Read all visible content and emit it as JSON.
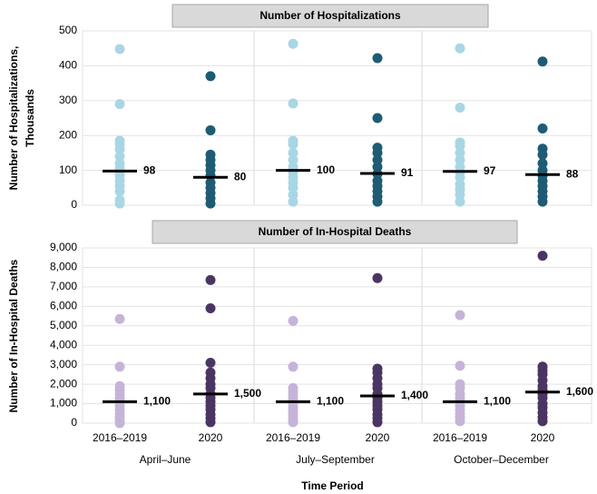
{
  "chart_data": [
    {
      "type": "strip",
      "title": "Number of Hospitalizations",
      "ylabel": [
        "Number of Hospitalizations,",
        "Thousands"
      ],
      "ylim": [
        0,
        500
      ],
      "yticks": [
        0,
        100,
        200,
        300,
        400,
        500
      ],
      "grid": true,
      "series": [
        {
          "color": "#a9d6e5",
          "values": [
            448,
            290,
            185,
            175,
            160,
            140,
            120,
            105,
            95,
            85,
            70,
            55,
            40,
            15,
            5
          ]
        },
        {
          "color": "#1f5b74",
          "values": [
            370,
            215,
            145,
            130,
            115,
            100,
            85,
            65,
            50,
            35,
            20,
            5
          ]
        },
        {
          "color": "#a9d6e5",
          "values": [
            463,
            292,
            185,
            175,
            150,
            130,
            110,
            95,
            80,
            65,
            50,
            30,
            10
          ]
        },
        {
          "color": "#1f5b74",
          "values": [
            422,
            250,
            165,
            150,
            130,
            110,
            90,
            70,
            55,
            40,
            25,
            10
          ]
        },
        {
          "color": "#a9d6e5",
          "values": [
            450,
            280,
            180,
            170,
            150,
            130,
            110,
            95,
            80,
            60,
            45,
            30,
            10
          ]
        },
        {
          "color": "#1f5b74",
          "values": [
            412,
            220,
            162,
            145,
            120,
            100,
            85,
            70,
            55,
            40,
            25,
            10
          ]
        }
      ],
      "medians": [
        98,
        80,
        100,
        91,
        97,
        88
      ]
    },
    {
      "type": "strip",
      "title": "Number of In-Hospital Deaths",
      "ylabel": [
        "Number of In-Hospital Deaths"
      ],
      "xlabel": "Time Period",
      "categories": [
        "2016–2019",
        "2020",
        "2016–2019",
        "2020",
        "2016–2019",
        "2020"
      ],
      "periods": [
        "April–June",
        "July–September",
        "October–December"
      ],
      "ylim": [
        0,
        9000
      ],
      "yticks": [
        0,
        {
          "value": 1000,
          "label": "1,000"
        },
        {
          "value": 2000,
          "label": "2,000"
        },
        {
          "value": 3000,
          "label": "3,000"
        },
        {
          "value": 4000,
          "label": "4,000"
        },
        {
          "value": 5000,
          "label": "5,000"
        },
        {
          "value": 6000,
          "label": "6,000"
        },
        {
          "value": 7000,
          "label": "7,000"
        },
        {
          "value": 8000,
          "label": "8,000"
        },
        {
          "value": 9000,
          "label": "9,000"
        }
      ],
      "grid": true,
      "series": [
        {
          "color": "#c6b4d8",
          "values": [
            5350,
            2900,
            1900,
            1700,
            1500,
            1300,
            1100,
            900,
            700,
            500,
            300,
            100,
            0
          ]
        },
        {
          "color": "#4b3562",
          "values": [
            7350,
            5900,
            3100,
            2600,
            2300,
            2000,
            1800,
            1500,
            1300,
            1100,
            900,
            700,
            450,
            250,
            50
          ]
        },
        {
          "color": "#c6b4d8",
          "values": [
            5250,
            2900,
            1800,
            1600,
            1400,
            1200,
            1000,
            800,
            600,
            400,
            200,
            50
          ]
        },
        {
          "color": "#4b3562",
          "values": [
            7450,
            2800,
            2600,
            2300,
            2000,
            1800,
            1500,
            1300,
            1100,
            900,
            700,
            450,
            250,
            50
          ]
        },
        {
          "color": "#c6b4d8",
          "values": [
            5550,
            2950,
            2000,
            1800,
            1500,
            1300,
            1100,
            900,
            700,
            500,
            300,
            100
          ]
        },
        {
          "color": "#4b3562",
          "values": [
            8600,
            2900,
            2700,
            2500,
            2200,
            1900,
            1700,
            1500,
            1300,
            1000,
            800,
            550,
            300,
            100
          ]
        }
      ],
      "medians": [
        1100,
        1500,
        1100,
        1400,
        1100,
        1600
      ],
      "median_labels": [
        "1,100",
        "1,500",
        "1,100",
        "1,400",
        "1,100",
        "1,600"
      ]
    }
  ]
}
